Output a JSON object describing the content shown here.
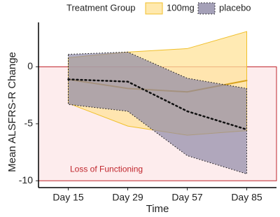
{
  "chart_data": {
    "type": "ribbon-line",
    "legend_title": "Treatment Group",
    "x_label": "Time",
    "y_label": "Mean ALSFRS-R Change",
    "categories": [
      "Day 15",
      "Day 29",
      "Day 57",
      "Day 85"
    ],
    "ylim": [
      -10.6,
      3.9
    ],
    "yticks": [
      0,
      -5,
      -10
    ],
    "threshold_band": {
      "from": 0,
      "to": -10,
      "label": "Loss of Functioning",
      "color": "#c0262d",
      "fill": "#fdeced"
    },
    "series": [
      {
        "name": "100mg",
        "color": "#f0bf2a",
        "fill": "#ffe39a",
        "line_style": "solid",
        "values": [
          -1.1,
          -1.9,
          -2.2,
          -1.2
        ],
        "upper": [
          0.8,
          1.3,
          1.6,
          3.1
        ],
        "lower": [
          -3.2,
          -5.2,
          -6.0,
          -5.6
        ]
      },
      {
        "name": "placebo",
        "color": "#111111",
        "fill": "#8e8aa6",
        "line_style": "dotted",
        "values": [
          -1.1,
          -1.3,
          -3.9,
          -5.5
        ],
        "upper": [
          1.1,
          1.3,
          -1.0,
          -1.9
        ],
        "lower": [
          -3.3,
          -3.9,
          -7.8,
          -9.4
        ]
      }
    ]
  }
}
